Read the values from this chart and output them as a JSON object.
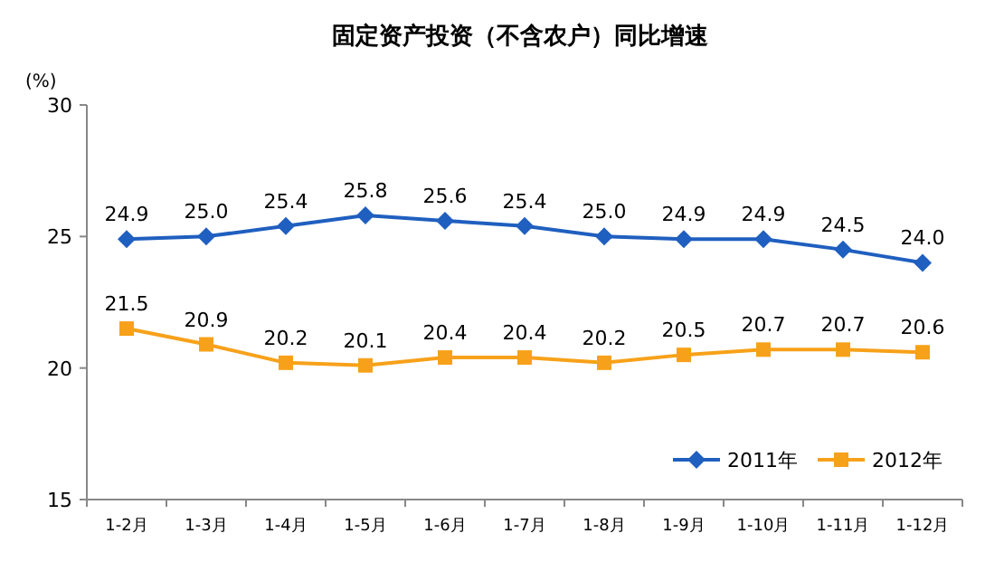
{
  "chart_data": {
    "type": "line",
    "title": "固定资产投资（不含农户）同比增速",
    "ylabel": "(%)",
    "categories": [
      "1-2月",
      "1-3月",
      "1-4月",
      "1-5月",
      "1-6月",
      "1-7月",
      "1-8月",
      "1-9月",
      "1-10月",
      "1-11月",
      "1-12月"
    ],
    "series": [
      {
        "name": "2011年",
        "color": "#1f5fbf",
        "marker": "diamond",
        "values": [
          24.9,
          25.0,
          25.4,
          25.8,
          25.6,
          25.4,
          25.0,
          24.9,
          24.9,
          24.5,
          24.0
        ],
        "value_labels": [
          "24.9",
          "25.0",
          "25.4",
          "25.8",
          "25.6",
          "25.4",
          "25.0",
          "24.9",
          "24.9",
          "24.5",
          "24.0"
        ]
      },
      {
        "name": "2012年",
        "color": "#f7a11a",
        "marker": "square",
        "values": [
          21.5,
          20.9,
          20.2,
          20.1,
          20.4,
          20.4,
          20.2,
          20.5,
          20.7,
          20.7,
          20.6
        ],
        "value_labels": [
          "21.5",
          "20.9",
          "20.2",
          "20.1",
          "20.4",
          "20.4",
          "20.2",
          "20.5",
          "20.7",
          "20.7",
          "20.6"
        ]
      }
    ],
    "ylim": [
      15,
      30
    ],
    "yticks": [
      15,
      20,
      25,
      30
    ],
    "legend": "bottom right",
    "grid": false,
    "line_style": "solid"
  }
}
